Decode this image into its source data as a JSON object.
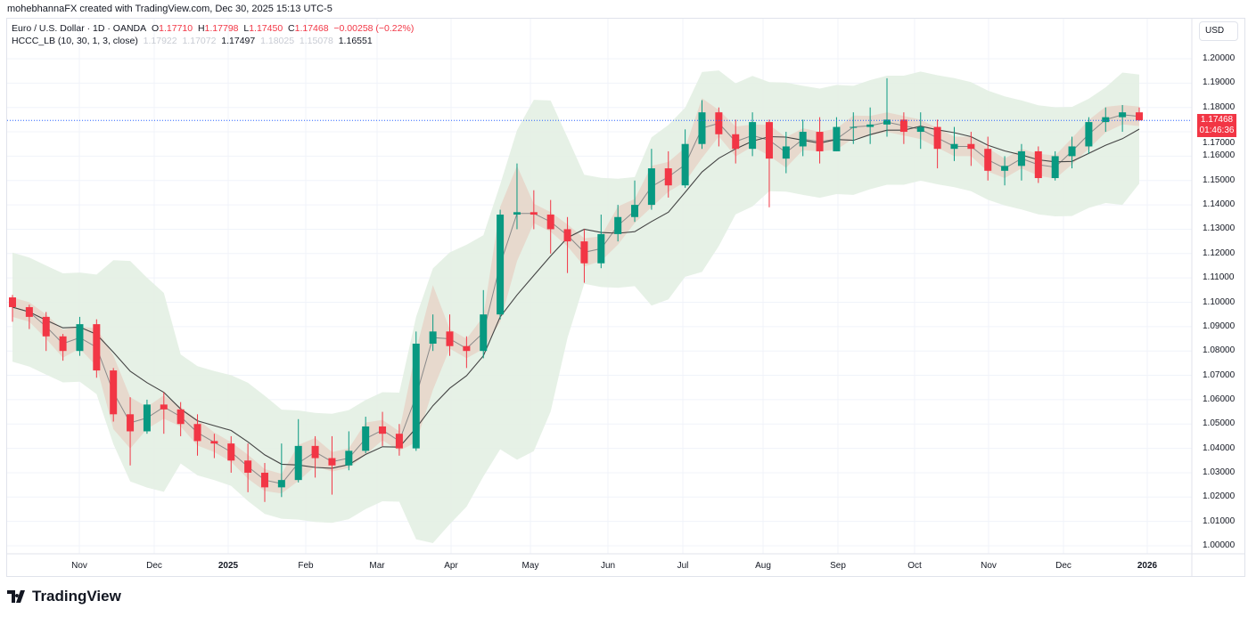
{
  "credit": "mohebhannaFX created with TradingView.com, Dec 30, 2025 15:13 UTC-5",
  "symbol": {
    "name": "Euro / U.S. Dollar · 1D · OANDA",
    "o_label": "O",
    "o": "1.17710",
    "h_label": "H",
    "h": "1.17798",
    "l_label": "L",
    "l": "1.17450",
    "c_label": "C",
    "c": "1.17468",
    "change": "−0.00258 (−0.22%)"
  },
  "indicator": {
    "name": "HCCC_LB (10, 30, 1, 3, close)",
    "values": [
      "1.17922",
      "1.17072",
      "1.17497",
      "1.18025",
      "1.15078",
      "1.16551"
    ]
  },
  "axis": {
    "currency": "USD",
    "last_price": "1.17468",
    "countdown": "01:46:36"
  },
  "colors": {
    "up": "#089981",
    "down": "#f23645",
    "outer_band": "#e3f0e3",
    "inner_band": "#e6d5c8",
    "inner_band_bear": "#fddcdc",
    "fast_line": "#8a8a8a",
    "slow_line": "#444444"
  },
  "brand": "TradingView",
  "chart_data": {
    "type": "candlestick",
    "ylim": [
      0.995,
      1.205
    ],
    "y_ticks": [
      "1.20000",
      "1.19000",
      "1.18000",
      "1.17000",
      "1.16000",
      "1.15000",
      "1.14000",
      "1.13000",
      "1.12000",
      "1.11000",
      "1.10000",
      "1.09000",
      "1.08000",
      "1.07000",
      "1.06000",
      "1.05000",
      "1.04000",
      "1.03000",
      "1.02000",
      "1.01000",
      "1.00000"
    ],
    "x_ticks": [
      {
        "label": "Nov",
        "bold": false
      },
      {
        "label": "Dec",
        "bold": false
      },
      {
        "label": "2025",
        "bold": true
      },
      {
        "label": "Feb",
        "bold": false
      },
      {
        "label": "Mar",
        "bold": false
      },
      {
        "label": "Apr",
        "bold": false
      },
      {
        "label": "May",
        "bold": false
      },
      {
        "label": "Jun",
        "bold": false
      },
      {
        "label": "Jul",
        "bold": false
      },
      {
        "label": "Aug",
        "bold": false
      },
      {
        "label": "Sep",
        "bold": false
      },
      {
        "label": "Oct",
        "bold": false
      },
      {
        "label": "Nov",
        "bold": false
      },
      {
        "label": "Dec",
        "bold": false
      },
      {
        "label": "2026",
        "bold": true
      }
    ],
    "closes": [
      1.098,
      1.094,
      1.086,
      1.08,
      1.091,
      1.072,
      1.054,
      1.047,
      1.058,
      1.056,
      1.05,
      1.043,
      1.042,
      1.035,
      1.03,
      1.024,
      1.027,
      1.041,
      1.036,
      1.033,
      1.039,
      1.049,
      1.046,
      1.04,
      1.083,
      1.088,
      1.082,
      1.08,
      1.095,
      1.136,
      1.137,
      1.136,
      1.13,
      1.125,
      1.116,
      1.128,
      1.135,
      1.14,
      1.155,
      1.148,
      1.165,
      1.178,
      1.169,
      1.163,
      1.174,
      1.159,
      1.164,
      1.17,
      1.162,
      1.172,
      1.172,
      1.173,
      1.175,
      1.17,
      1.172,
      1.163,
      1.165,
      1.163,
      1.154,
      1.156,
      1.162,
      1.151,
      1.16,
      1.164,
      1.174,
      1.176,
      1.178,
      1.1747
    ],
    "highs": [
      1.103,
      1.099,
      1.096,
      1.087,
      1.094,
      1.093,
      1.073,
      1.061,
      1.06,
      1.063,
      1.059,
      1.054,
      1.046,
      1.045,
      1.042,
      1.034,
      1.042,
      1.052,
      1.045,
      1.045,
      1.047,
      1.053,
      1.055,
      1.05,
      1.088,
      1.095,
      1.095,
      1.086,
      1.105,
      1.138,
      1.157,
      1.146,
      1.142,
      1.135,
      1.13,
      1.136,
      1.14,
      1.15,
      1.163,
      1.162,
      1.171,
      1.183,
      1.18,
      1.175,
      1.178,
      1.175,
      1.17,
      1.175,
      1.176,
      1.176,
      1.178,
      1.18,
      1.192,
      1.178,
      1.178,
      1.175,
      1.172,
      1.17,
      1.168,
      1.16,
      1.165,
      1.164,
      1.162,
      1.168,
      1.176,
      1.18,
      1.181,
      1.18
    ],
    "lows": [
      1.092,
      1.089,
      1.08,
      1.076,
      1.078,
      1.069,
      1.051,
      1.033,
      1.046,
      1.046,
      1.045,
      1.037,
      1.036,
      1.03,
      1.022,
      1.018,
      1.02,
      1.026,
      1.028,
      1.021,
      1.031,
      1.038,
      1.041,
      1.037,
      1.039,
      1.08,
      1.078,
      1.073,
      1.077,
      1.093,
      1.13,
      1.13,
      1.12,
      1.112,
      1.108,
      1.114,
      1.125,
      1.133,
      1.138,
      1.143,
      1.147,
      1.163,
      1.164,
      1.157,
      1.16,
      1.139,
      1.153,
      1.16,
      1.157,
      1.162,
      1.165,
      1.165,
      1.168,
      1.165,
      1.163,
      1.155,
      1.158,
      1.156,
      1.15,
      1.148,
      1.15,
      1.149,
      1.15,
      1.155,
      1.161,
      1.17,
      1.17,
      1.1745
    ]
  }
}
